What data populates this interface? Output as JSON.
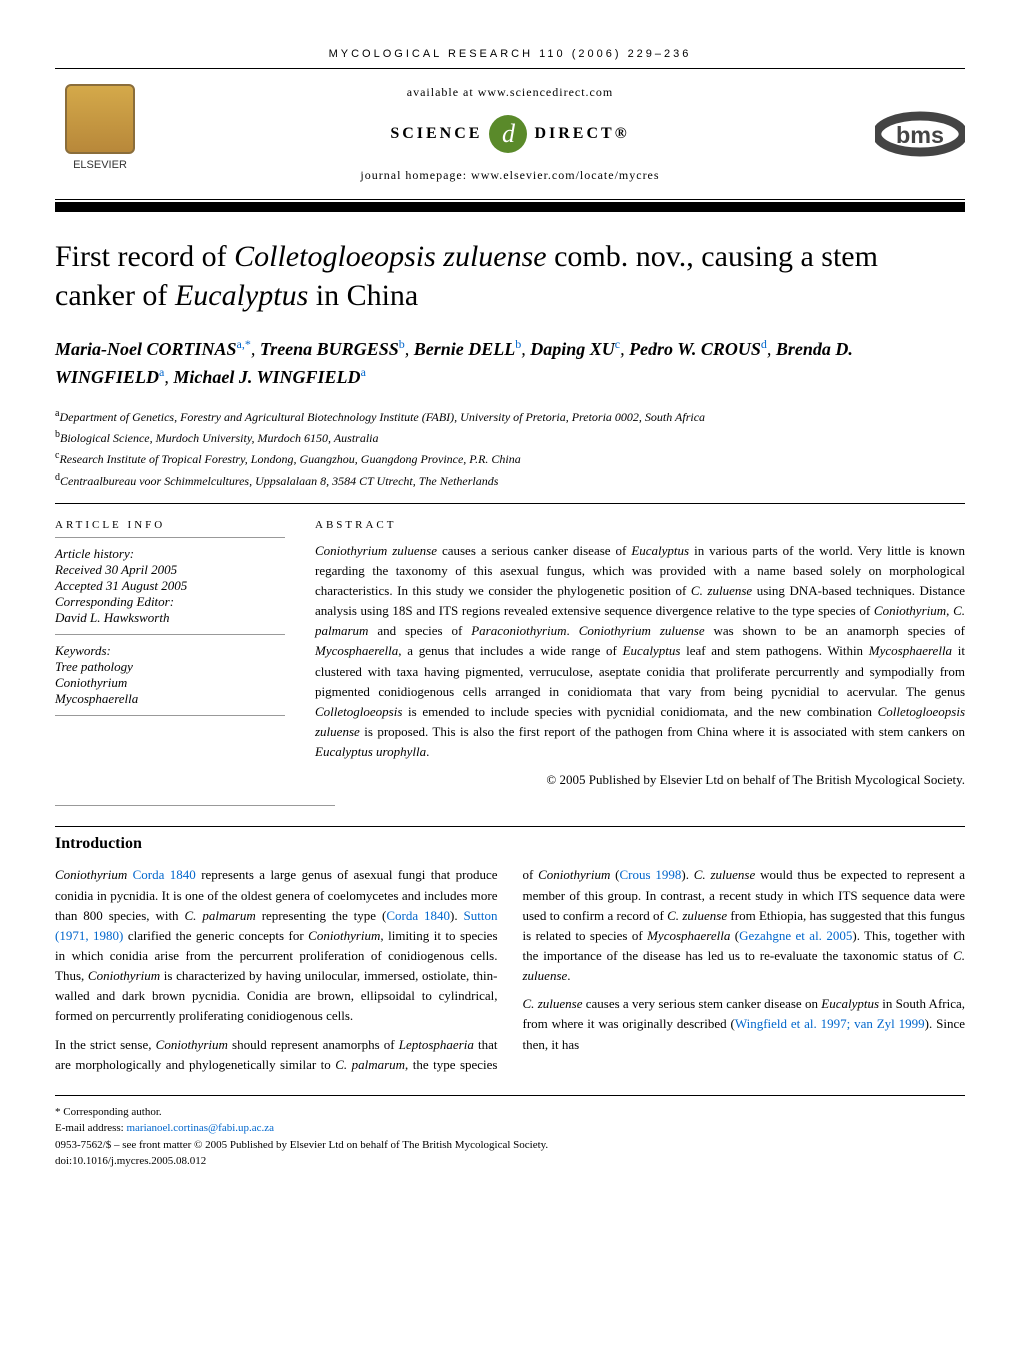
{
  "journal_header": "MYCOLOGICAL RESEARCH 110 (2006) 229–236",
  "header": {
    "available": "available at www.sciencedirect.com",
    "science_left": "SCIENCE",
    "science_right": "DIRECT®",
    "homepage": "journal homepage: www.elsevier.com/locate/mycres",
    "elsevier_label": "ELSEVIER",
    "bms_label": "bms"
  },
  "title": {
    "pre": "First record of ",
    "species1": "Colletogloeopsis zuluense",
    "mid": " comb. nov., causing a stem canker of ",
    "species2": "Eucalyptus",
    "post": " in China"
  },
  "authors": [
    {
      "name": "Maria-Noel CORTINAS",
      "sup": "a,*"
    },
    {
      "name": "Treena BURGESS",
      "sup": "b"
    },
    {
      "name": "Bernie DELL",
      "sup": "b"
    },
    {
      "name": "Daping XU",
      "sup": "c"
    },
    {
      "name": "Pedro W. CROUS",
      "sup": "d"
    },
    {
      "name": "Brenda D. WINGFIELD",
      "sup": "a"
    },
    {
      "name": "Michael J. WINGFIELD",
      "sup": "a"
    }
  ],
  "affiliations": [
    {
      "sup": "a",
      "text": "Department of Genetics, Forestry and Agricultural Biotechnology Institute (FABI), University of Pretoria, Pretoria 0002, South Africa"
    },
    {
      "sup": "b",
      "text": "Biological Science, Murdoch University, Murdoch 6150, Australia"
    },
    {
      "sup": "c",
      "text": "Research Institute of Tropical Forestry, Londong, Guangzhou, Guangdong Province, P.R. China"
    },
    {
      "sup": "d",
      "text": "Centraalbureau voor Schimmelcultures, Uppsalalaan 8, 3584 CT Utrecht, The Netherlands"
    }
  ],
  "article_info": {
    "heading": "ARTICLE INFO",
    "history_label": "Article history:",
    "received": "Received 30 April 2005",
    "accepted": "Accepted 31 August 2005",
    "editor_label": "Corresponding Editor:",
    "editor": "David L. Hawksworth",
    "keywords_label": "Keywords:",
    "keywords": [
      "Tree pathology",
      "Coniothyrium",
      "Mycosphaerella"
    ]
  },
  "abstract": {
    "heading": "ABSTRACT",
    "text": "Coniothyrium zuluense causes a serious canker disease of Eucalyptus in various parts of the world. Very little is known regarding the taxonomy of this asexual fungus, which was provided with a name based solely on morphological characteristics. In this study we consider the phylogenetic position of C. zuluense using DNA-based techniques. Distance analysis using 18S and ITS regions revealed extensive sequence divergence relative to the type species of Coniothyrium, C. palmarum and species of Paraconiothyrium. Coniothyrium zuluense was shown to be an anamorph species of Mycosphaerella, a genus that includes a wide range of Eucalyptus leaf and stem pathogens. Within Mycosphaerella it clustered with taxa having pigmented, verruculose, aseptate conidia that proliferate percurrently and sympodially from pigmented conidiogenous cells arranged in conidiomata that vary from being pycnidial to acervular. The genus Colletogloeopsis is emended to include species with pycnidial conidiomata, and the new combination Colletogloeopsis zuluense is proposed. This is also the first report of the pathogen from China where it is associated with stem cankers on Eucalyptus urophylla.",
    "copyright": "© 2005 Published by Elsevier Ltd on behalf of The British Mycological Society."
  },
  "introduction": {
    "heading": "Introduction",
    "para1_parts": [
      {
        "t": "Coniothyrium ",
        "i": true
      },
      {
        "t": "Corda 1840",
        "c": true
      },
      {
        "t": " represents a large genus of asexual fungi that produce conidia in pycnidia. It is one of the oldest genera of coelomycetes and includes more than 800 species, with "
      },
      {
        "t": "C. palmarum",
        "i": true
      },
      {
        "t": " representing the type ("
      },
      {
        "t": "Corda 1840",
        "c": true
      },
      {
        "t": "). "
      },
      {
        "t": "Sutton (1971, 1980)",
        "c": true
      },
      {
        "t": " clarified the generic concepts for "
      },
      {
        "t": "Coniothyrium",
        "i": true
      },
      {
        "t": ", limiting it to species in which conidia arise from the percurrent proliferation of conidiogenous cells. Thus, "
      },
      {
        "t": "Coniothyrium",
        "i": true
      },
      {
        "t": " is characterized by having unilocular, immersed, ostiolate, thin-walled and dark brown pycnidia. Conidia are brown, ellipsoidal to cylindrical, formed on percurrently proliferating conidiogenous cells."
      }
    ],
    "para2_parts": [
      {
        "t": "In the strict sense, "
      },
      {
        "t": "Coniothyrium",
        "i": true
      },
      {
        "t": " should represent anamorphs of "
      },
      {
        "t": "Leptosphaeria",
        "i": true
      },
      {
        "t": " that are morphologically and phylogenetically similar to "
      },
      {
        "t": "C. palmarum",
        "i": true
      },
      {
        "t": ", the type species of "
      },
      {
        "t": "Coniothyrium",
        "i": true
      },
      {
        "t": " ("
      },
      {
        "t": "Crous 1998",
        "c": true
      },
      {
        "t": "). "
      },
      {
        "t": "C. zuluense",
        "i": true
      },
      {
        "t": " would thus be expected to represent a member of this group. In contrast, a recent study in which ITS sequence data were used to confirm a record of "
      },
      {
        "t": "C. zuluense",
        "i": true
      },
      {
        "t": " from Ethiopia, has suggested that this fungus is related to species of "
      },
      {
        "t": "Mycosphaerella",
        "i": true
      },
      {
        "t": " ("
      },
      {
        "t": "Gezahgne et al. 2005",
        "c": true
      },
      {
        "t": "). This, together with the importance of the disease has led us to re-evaluate the taxonomic status of "
      },
      {
        "t": "C. zuluense",
        "i": true
      },
      {
        "t": "."
      }
    ],
    "para3_parts": [
      {
        "t": "C. zuluense",
        "i": true
      },
      {
        "t": " causes a very serious stem canker disease on "
      },
      {
        "t": "Eucalyptus",
        "i": true
      },
      {
        "t": " in South Africa, from where it was originally described ("
      },
      {
        "t": "Wingfield et al. 1997; van Zyl 1999",
        "c": true
      },
      {
        "t": "). Since then, it has"
      }
    ]
  },
  "footer": {
    "corresponding": "* Corresponding author.",
    "email_label": "E-mail address: ",
    "email": "marianoel.cortinas@fabi.up.ac.za",
    "copyright": "0953-7562/$ – see front matter © 2005 Published by Elsevier Ltd on behalf of The British Mycological Society.",
    "doi": "doi:10.1016/j.mycres.2005.08.012"
  }
}
